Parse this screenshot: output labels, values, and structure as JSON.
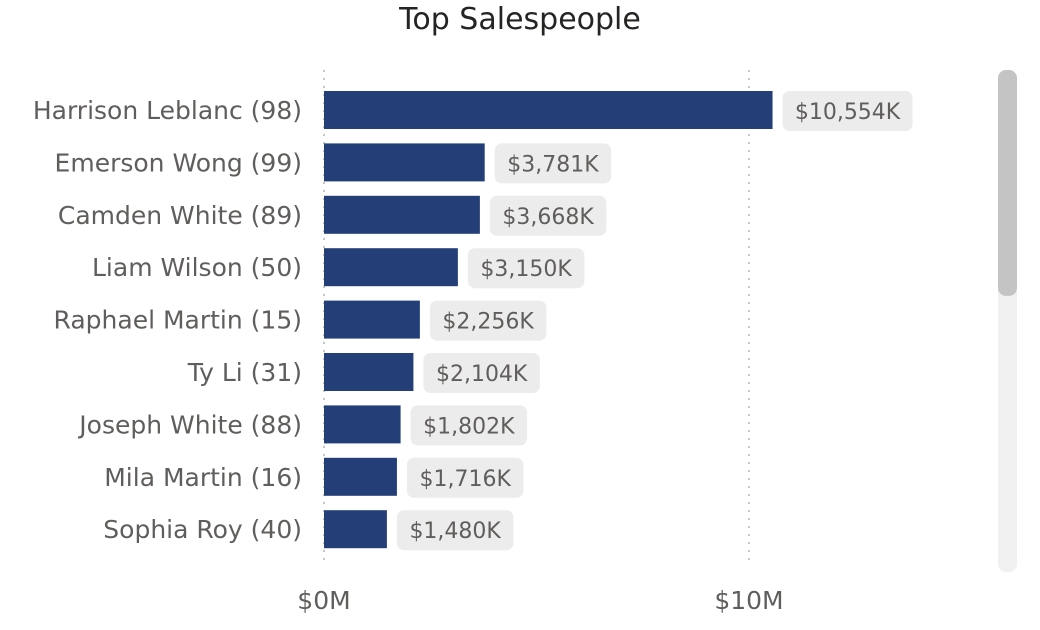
{
  "chart_data": {
    "type": "bar",
    "orientation": "horizontal",
    "title": "Top Salespeople",
    "categories": [
      "Harrison Leblanc (98)",
      "Emerson Wong (99)",
      "Camden White (89)",
      "Liam Wilson (50)",
      "Raphael Martin (15)",
      "Ty Li (31)",
      "Joseph White (88)",
      "Mila Martin (16)",
      "Sophia Roy (40)"
    ],
    "values": [
      10554,
      3781,
      3668,
      3150,
      2256,
      2104,
      1802,
      1716,
      1480
    ],
    "data_labels": [
      "$10,554K",
      "$3,781K",
      "$3,668K",
      "$3,150K",
      "$2,256K",
      "$2,104K",
      "$1,802K",
      "$1,716K",
      "$1,480K"
    ],
    "value_unit": "$K",
    "xlim": [
      0,
      15000
    ],
    "x_ticks": [
      {
        "value": 0,
        "label": "$0M"
      },
      {
        "value": 10000,
        "label": "$10M"
      }
    ],
    "gridlines": "vertical-dotted",
    "bar_color": "#243f78",
    "label_bg_color": "#ececec"
  },
  "scrollbar": {
    "visible_fraction": 0.45,
    "position_fraction": 0
  }
}
